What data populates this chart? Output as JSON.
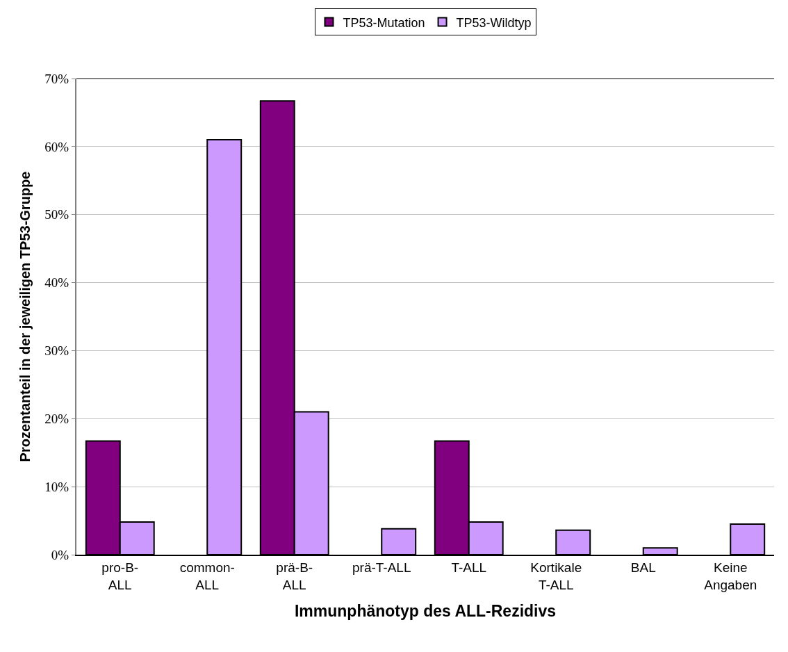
{
  "chart_data": {
    "type": "bar",
    "xlabel": "Immunphänotyp des ALL-Rezidivs",
    "ylabel": "Prozentanteil in der jeweiligen TP53-Gruppe",
    "categories": [
      "pro-B-\nALL",
      "common-\nALL",
      "prä-B-\nALL",
      "prä-T-ALL",
      "T-ALL",
      "Kortikale\nT-ALL",
      "BAL",
      "Keine\nAngaben"
    ],
    "series": [
      {
        "name": "TP53-Mutation",
        "color": "#800080",
        "values": [
          16.7,
          0,
          66.7,
          0,
          16.7,
          0,
          0,
          0
        ]
      },
      {
        "name": "TP53-Wildtyp",
        "color": "#cc99ff",
        "values": [
          4.8,
          61.0,
          21.0,
          3.8,
          4.8,
          3.6,
          1.0,
          4.5
        ]
      }
    ],
    "ylim": [
      0,
      70
    ],
    "yticks": [
      {
        "value": 0,
        "label": "0%"
      },
      {
        "value": 10,
        "label": "10%"
      },
      {
        "value": 20,
        "label": "20%"
      },
      {
        "value": 30,
        "label": "30%"
      },
      {
        "value": 40,
        "label": "40%"
      },
      {
        "value": 50,
        "label": "50%"
      },
      {
        "value": 60,
        "label": "60%"
      },
      {
        "value": 70,
        "label": "70%"
      }
    ],
    "grid": "y",
    "legend": "top"
  }
}
